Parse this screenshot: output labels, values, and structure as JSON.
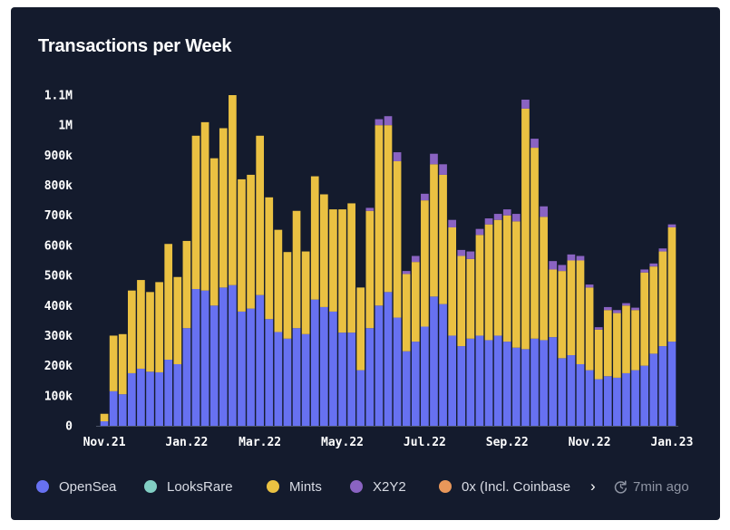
{
  "chart_data": {
    "type": "bar",
    "stacked": true,
    "title": "Transactions per Week",
    "xlabel": "",
    "ylabel": "",
    "ylim": [
      0,
      1100000
    ],
    "yticks": [
      0,
      100000,
      200000,
      300000,
      400000,
      500000,
      600000,
      700000,
      800000,
      900000,
      1000000,
      1100000
    ],
    "ytick_labels": [
      "0",
      "100k",
      "200k",
      "300k",
      "400k",
      "500k",
      "600k",
      "700k",
      "800k",
      "900k",
      "1M",
      "1.1M"
    ],
    "xtick_labels": [
      {
        "label": "Nov.21",
        "index": 0
      },
      {
        "label": "Jan.22",
        "index": 9
      },
      {
        "label": "Mar.22",
        "index": 17
      },
      {
        "label": "May.22",
        "index": 26
      },
      {
        "label": "Jul.22",
        "index": 35
      },
      {
        "label": "Sep.22",
        "index": 44
      },
      {
        "label": "Nov.22",
        "index": 53
      },
      {
        "label": "Jan.23",
        "index": 62
      }
    ],
    "grid": false,
    "legend_position": "bottom",
    "series": [
      {
        "name": "OpenSea",
        "color": "#6771f1",
        "values": [
          15000,
          115000,
          105000,
          175000,
          190000,
          180000,
          178000,
          220000,
          205000,
          325000,
          455000,
          450000,
          400000,
          460000,
          468000,
          380000,
          390000,
          435000,
          355000,
          312000,
          290000,
          325000,
          305000,
          420000,
          395000,
          380000,
          310000,
          310000,
          185000,
          325000,
          400000,
          445000,
          360000,
          248000,
          280000,
          330000,
          430000,
          405000,
          300000,
          265000,
          290000,
          300000,
          285000,
          300000,
          280000,
          260000,
          255000,
          290000,
          285000,
          295000,
          225000,
          235000,
          205000,
          185000,
          155000,
          165000,
          160000,
          175000,
          185000,
          200000,
          240000,
          265000,
          280000
        ]
      },
      {
        "name": "LooksRare",
        "color": "#82cfc4",
        "values": [
          0,
          0,
          0,
          0,
          0,
          0,
          0,
          0,
          0,
          0,
          0,
          0,
          0,
          0,
          0,
          0,
          0,
          0,
          0,
          0,
          0,
          0,
          0,
          0,
          0,
          0,
          0,
          0,
          0,
          0,
          0,
          0,
          0,
          0,
          0,
          0,
          0,
          0,
          0,
          0,
          0,
          0,
          0,
          0,
          0,
          0,
          0,
          0,
          0,
          0,
          0,
          0,
          0,
          0,
          0,
          0,
          0,
          0,
          0,
          0,
          0,
          0,
          0
        ]
      },
      {
        "name": "Mints",
        "color": "#eac142",
        "values": [
          25000,
          185000,
          200000,
          275000,
          295000,
          265000,
          300000,
          385000,
          290000,
          290000,
          510000,
          560000,
          490000,
          530000,
          632000,
          440000,
          445000,
          530000,
          405000,
          340000,
          288000,
          390000,
          275000,
          410000,
          375000,
          340000,
          410000,
          430000,
          275000,
          390000,
          600000,
          555000,
          520000,
          257000,
          265000,
          420000,
          440000,
          430000,
          360000,
          300000,
          265000,
          335000,
          385000,
          385000,
          420000,
          420000,
          800000,
          635000,
          410000,
          225000,
          290000,
          315000,
          345000,
          275000,
          165000,
          220000,
          215000,
          225000,
          200000,
          310000,
          290000,
          315000,
          380000
        ]
      },
      {
        "name": "X2Y2",
        "color": "#8a63c2",
        "values": [
          0,
          0,
          0,
          0,
          0,
          0,
          0,
          0,
          0,
          0,
          0,
          0,
          0,
          0,
          0,
          0,
          0,
          0,
          0,
          0,
          0,
          0,
          0,
          0,
          0,
          0,
          0,
          0,
          0,
          10000,
          20000,
          30000,
          30000,
          10000,
          20000,
          22000,
          35000,
          35000,
          25000,
          20000,
          25000,
          20000,
          20000,
          20000,
          20000,
          25000,
          30000,
          30000,
          35000,
          28000,
          20000,
          20000,
          15000,
          10000,
          8000,
          10000,
          10000,
          8000,
          8000,
          10000,
          10000,
          10000,
          10000
        ]
      },
      {
        "name": "0x (Incl. Coinbase)",
        "color": "#e8975a",
        "values": [
          0,
          0,
          0,
          0,
          0,
          0,
          0,
          0,
          0,
          0,
          0,
          0,
          0,
          0,
          0,
          0,
          0,
          0,
          0,
          0,
          0,
          0,
          0,
          0,
          0,
          0,
          0,
          0,
          0,
          0,
          0,
          0,
          0,
          0,
          0,
          0,
          0,
          0,
          0,
          0,
          0,
          0,
          0,
          0,
          0,
          0,
          0,
          0,
          0,
          0,
          0,
          0,
          0,
          0,
          0,
          0,
          0,
          0,
          0,
          0,
          0,
          0,
          0
        ]
      }
    ]
  },
  "legend": {
    "items": [
      {
        "label": "OpenSea",
        "color": "#6771f1"
      },
      {
        "label": "LooksRare",
        "color": "#82cfc4"
      },
      {
        "label": "Mints",
        "color": "#eac142"
      },
      {
        "label": "X2Y2",
        "color": "#8a63c2"
      },
      {
        "label": "0x (Incl. Coinbase",
        "color": "#e8975a"
      }
    ],
    "next_icon": "chevron-right-icon",
    "next_glyph": "›"
  },
  "updated": {
    "text": "7min ago",
    "icon": "refresh-icon"
  }
}
